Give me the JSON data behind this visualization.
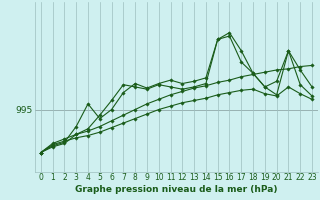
{
  "title": "Graphe pression niveau de la mer (hPa)",
  "background_color": "#cff0f0",
  "grid_color": "#9dbfbf",
  "line_color": "#1a5c1a",
  "ylabel_text": "995",
  "ylabel_value": 995,
  "hours": [
    0,
    1,
    2,
    3,
    4,
    5,
    6,
    7,
    8,
    9,
    10,
    11,
    12,
    13,
    14,
    15,
    16,
    17,
    18,
    19,
    20,
    21,
    22,
    23
  ],
  "series": [
    [
      991.2,
      992.0,
      992.4,
      992.8,
      993.1,
      993.5,
      994.0,
      994.5,
      995.0,
      995.5,
      995.9,
      996.3,
      996.6,
      996.9,
      997.1,
      997.4,
      997.6,
      997.9,
      998.1,
      998.3,
      998.5,
      998.6,
      998.8,
      998.9
    ],
    [
      991.2,
      991.9,
      992.2,
      992.5,
      992.7,
      993.0,
      993.4,
      993.8,
      994.2,
      994.6,
      995.0,
      995.3,
      995.6,
      995.8,
      996.0,
      996.3,
      996.5,
      996.7,
      996.8,
      996.4,
      996.2,
      997.0,
      996.4,
      995.9
    ],
    [
      991.2,
      991.8,
      992.1,
      993.5,
      995.5,
      994.2,
      995.0,
      996.5,
      997.3,
      996.9,
      997.3,
      997.6,
      997.3,
      997.5,
      997.8,
      1001.2,
      1001.5,
      999.2,
      998.2,
      997.0,
      997.5,
      1000.2,
      998.5,
      997.0
    ],
    [
      991.2,
      991.7,
      992.0,
      992.8,
      993.3,
      994.5,
      995.8,
      997.2,
      997.0,
      996.8,
      997.2,
      997.0,
      996.8,
      997.0,
      997.3,
      1001.2,
      1001.8,
      1000.2,
      998.2,
      997.0,
      996.3,
      1000.2,
      997.2,
      996.2
    ]
  ],
  "ylim": [
    989.5,
    1004.5
  ],
  "xlim": [
    -0.5,
    23.5
  ],
  "hline_value": 995,
  "font_color": "#1a5c1a",
  "tick_fontsize": 5.5,
  "xlabel_fontsize": 6.5,
  "ylabel_fontsize": 6.5
}
